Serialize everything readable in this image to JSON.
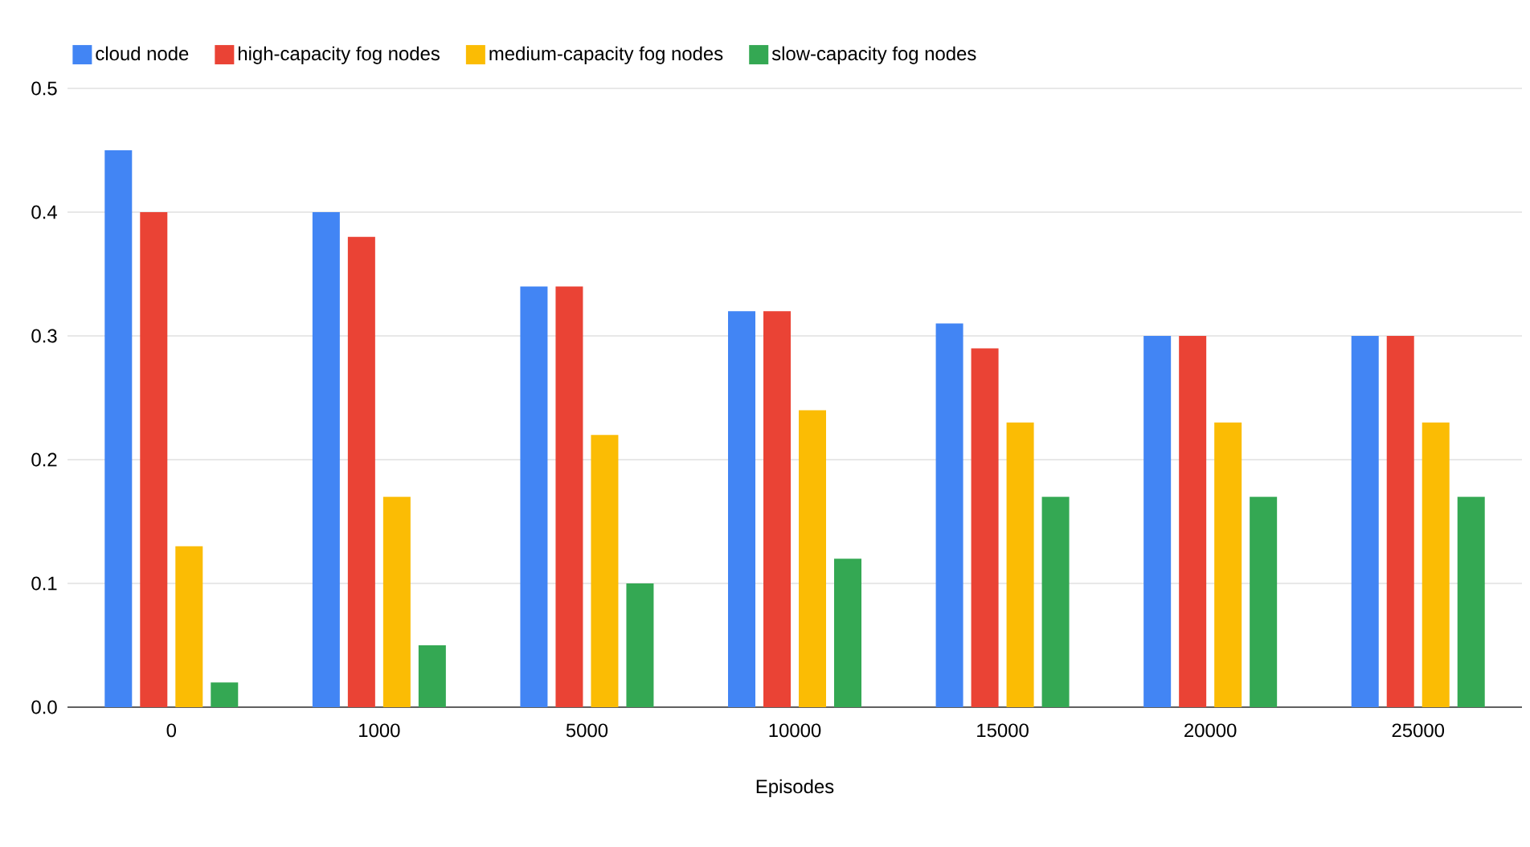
{
  "chart_data": {
    "type": "bar",
    "xlabel": "Episodes",
    "categories": [
      "0",
      "1000",
      "5000",
      "10000",
      "15000",
      "20000",
      "25000"
    ],
    "series": [
      {
        "name": "cloud node",
        "color": "#4285f4",
        "values": [
          0.45,
          0.4,
          0.34,
          0.32,
          0.31,
          0.3,
          0.3
        ]
      },
      {
        "name": "high-capacity fog nodes",
        "color": "#ea4335",
        "values": [
          0.4,
          0.38,
          0.34,
          0.32,
          0.29,
          0.3,
          0.3
        ]
      },
      {
        "name": "medium-capacity fog nodes",
        "color": "#fbbc04",
        "values": [
          0.13,
          0.17,
          0.22,
          0.24,
          0.23,
          0.23,
          0.23
        ]
      },
      {
        "name": "slow-capacity fog nodes",
        "color": "#34a853",
        "values": [
          0.02,
          0.05,
          0.1,
          0.12,
          0.17,
          0.17,
          0.17
        ]
      }
    ],
    "ylim": [
      0,
      0.5
    ],
    "yticks": [
      {
        "value": 0,
        "label": "0.0"
      },
      0.1,
      0.2,
      0.3,
      0.4,
      0.5
    ],
    "grid": "y",
    "legend": "top left"
  }
}
